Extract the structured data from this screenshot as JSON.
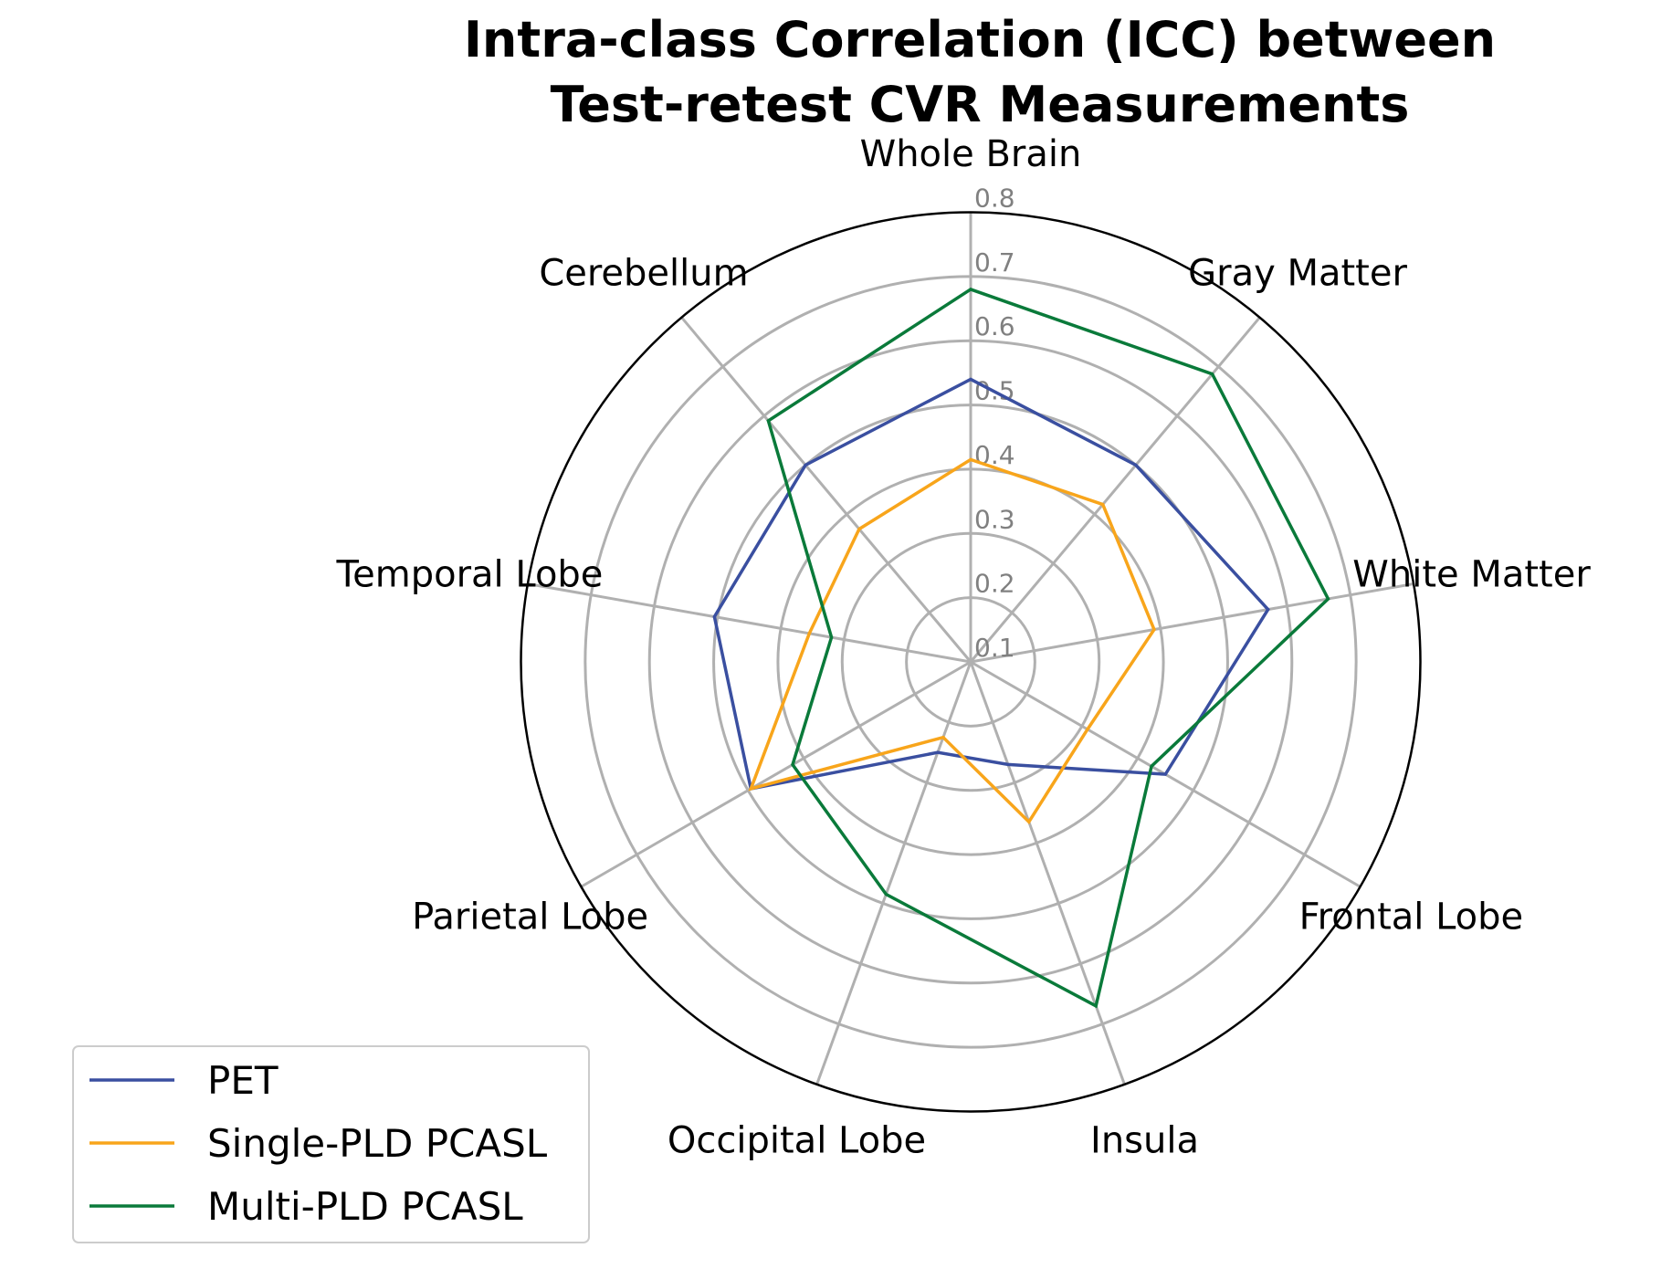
{
  "chart_data": {
    "type": "radar",
    "title": [
      "Intra-class Correlation (ICC) between",
      "Test-retest CVR Measurements"
    ],
    "categories": [
      "Whole Brain",
      "Gray Matter",
      "White Matter",
      "Frontal Lobe",
      "Insula",
      "Occipital Lobe",
      "Parietal Lobe",
      "Temporal Lobe",
      "Cerebellum"
    ],
    "rlim": [
      0.1,
      0.8
    ],
    "rticks": [
      "0.1",
      "0.2",
      "0.3",
      "0.4",
      "0.5",
      "0.6",
      "0.7",
      "0.8"
    ],
    "grid": true,
    "legend_position": "bottom-left",
    "series": [
      {
        "name": "PET",
        "color": "#3a4fa0",
        "values": [
          0.54,
          0.5,
          0.57,
          0.45,
          0.27,
          0.25,
          0.495,
          0.505,
          0.5
        ]
      },
      {
        "name": "Single-PLD PCASL",
        "color": "#f8a51b",
        "values": [
          0.415,
          0.42,
          0.39,
          0.31,
          0.365,
          0.225,
          0.495,
          0.355,
          0.37
        ]
      },
      {
        "name": "Multi-PLD PCASL",
        "color": "#0a7a3a",
        "values": [
          0.68,
          0.685,
          0.665,
          0.425,
          0.67,
          0.485,
          0.42,
          0.32,
          0.59
        ]
      }
    ]
  }
}
